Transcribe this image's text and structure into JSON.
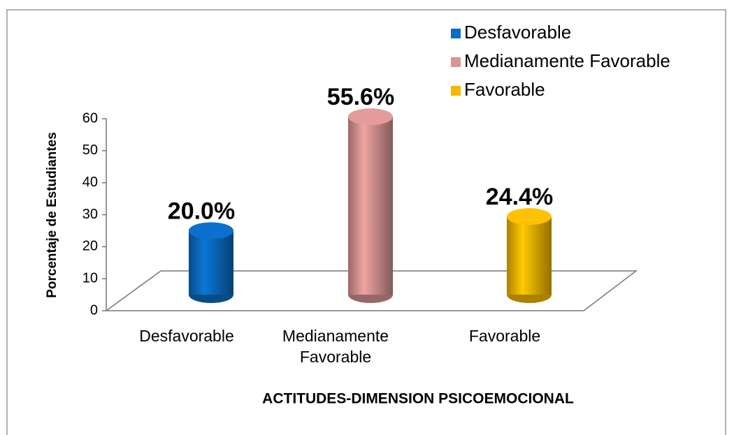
{
  "chart_data": {
    "type": "bar3d",
    "categories": [
      "Desfavorable",
      "Medianamente Favorable",
      "Favorable"
    ],
    "values": [
      20.0,
      55.6,
      24.4
    ],
    "value_labels": [
      "20.0%",
      "55.6%",
      "24.4%"
    ],
    "colors": [
      "#0a6cc2",
      "#d99594",
      "#f5b800"
    ],
    "ylabel": "Porcentaje de Estudiantes",
    "xlabel": "ACTITUDES-DIMENSION  PSICOEMOCIONAL",
    "ylim": [
      0,
      60
    ],
    "yticks": [
      0,
      10,
      20,
      30,
      40,
      50,
      60
    ],
    "legend": "top-right"
  }
}
